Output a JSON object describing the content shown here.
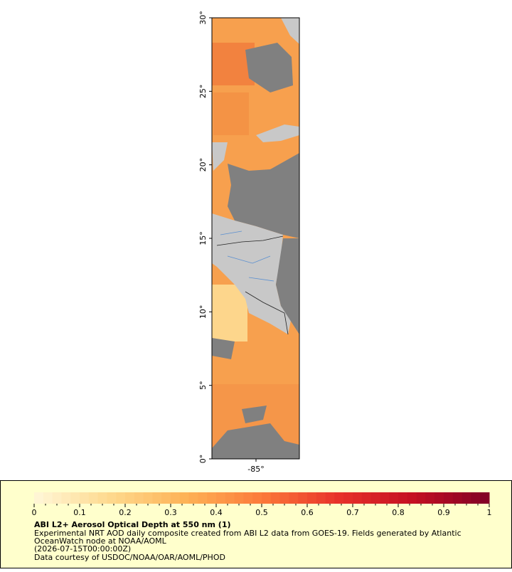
{
  "map": {
    "lat_ticks": [
      {
        "value": 0,
        "label": "0°"
      },
      {
        "value": 5,
        "label": "5°"
      },
      {
        "value": 10,
        "label": "10°"
      },
      {
        "value": 15,
        "label": "15°"
      },
      {
        "value": 20,
        "label": "20°"
      },
      {
        "value": 25,
        "label": "25°"
      },
      {
        "value": 30,
        "label": "30°"
      }
    ],
    "lat_range": [
      0,
      30
    ],
    "lon_ticks": [
      {
        "value": -85,
        "label": "-85°"
      }
    ],
    "lon_range": [
      -88.05,
      -82.0
    ]
  },
  "colorbar": {
    "range": [
      0,
      1
    ],
    "ticks": [
      0,
      0.1,
      0.2,
      0.3,
      0.4,
      0.5,
      0.6,
      0.7,
      0.8,
      0.9,
      1
    ],
    "colors": [
      "#fff7d8",
      "#fed98e",
      "#fdb256",
      "#fc7a3a",
      "#e8322a",
      "#c40f22",
      "#800026"
    ]
  },
  "caption": {
    "title": "ABI L2+ Aerosol Optical Depth at 550 nm (1)",
    "lines": [
      "Experimental NRT AOD daily composite created from ABI L2 data from GOES-19. Fields generated by Atlantic",
      "OceanWatch node at NOAA/AOML",
      "(2026-07-15T00:00:00Z)",
      "Data courtesy of USDOC/NOAA/OAR/AOML/PHOD"
    ]
  }
}
